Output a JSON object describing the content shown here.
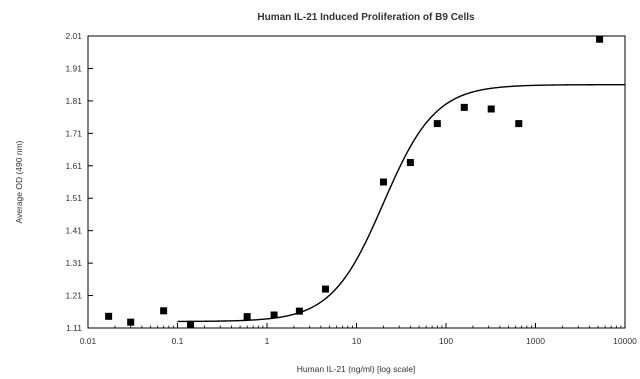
{
  "chart_data": {
    "type": "scatter",
    "title": "Human IL-21 Induced Proliferation of B9 Cells",
    "xlabel": "Human IL-21 (ng/ml) [log scale]",
    "ylabel": "Average OD (490 nm)",
    "xscale": "log",
    "xlim": [
      0.01,
      10000
    ],
    "ylim": [
      1.11,
      2.01
    ],
    "xticks": [
      0.01,
      0.1,
      1,
      10,
      100,
      1000,
      10000
    ],
    "xtick_labels": [
      "0.01",
      "0.1",
      "1",
      "10",
      "100",
      "1000",
      "10000"
    ],
    "yticks": [
      1.11,
      1.21,
      1.31,
      1.41,
      1.51,
      1.61,
      1.71,
      1.81,
      1.91,
      2.01
    ],
    "ytick_labels": [
      "1.11",
      "1.21",
      "1.31",
      "1.41",
      "1.51",
      "1.61",
      "1.71",
      "1.81",
      "1.91",
      "2.01"
    ],
    "grid": false,
    "series": [
      {
        "points": [
          {
            "x": 0.017,
            "y": 1.146
          },
          {
            "x": 0.03,
            "y": 1.128
          },
          {
            "x": 0.07,
            "y": 1.163
          },
          {
            "x": 0.14,
            "y": 1.12
          },
          {
            "x": 0.6,
            "y": 1.145
          },
          {
            "x": 1.2,
            "y": 1.15
          },
          {
            "x": 2.3,
            "y": 1.162
          },
          {
            "x": 4.5,
            "y": 1.23
          },
          {
            "x": 20,
            "y": 1.56
          },
          {
            "x": 40,
            "y": 1.62
          },
          {
            "x": 80,
            "y": 1.74
          },
          {
            "x": 160,
            "y": 1.79
          },
          {
            "x": 320,
            "y": 1.785
          },
          {
            "x": 650,
            "y": 1.74
          },
          {
            "x": 5200,
            "y": 2.0
          }
        ]
      }
    ],
    "fit_curve": {
      "type": "4PL",
      "bottom": 1.13,
      "top": 1.86,
      "ec50": 20,
      "hill": 1.5
    }
  }
}
